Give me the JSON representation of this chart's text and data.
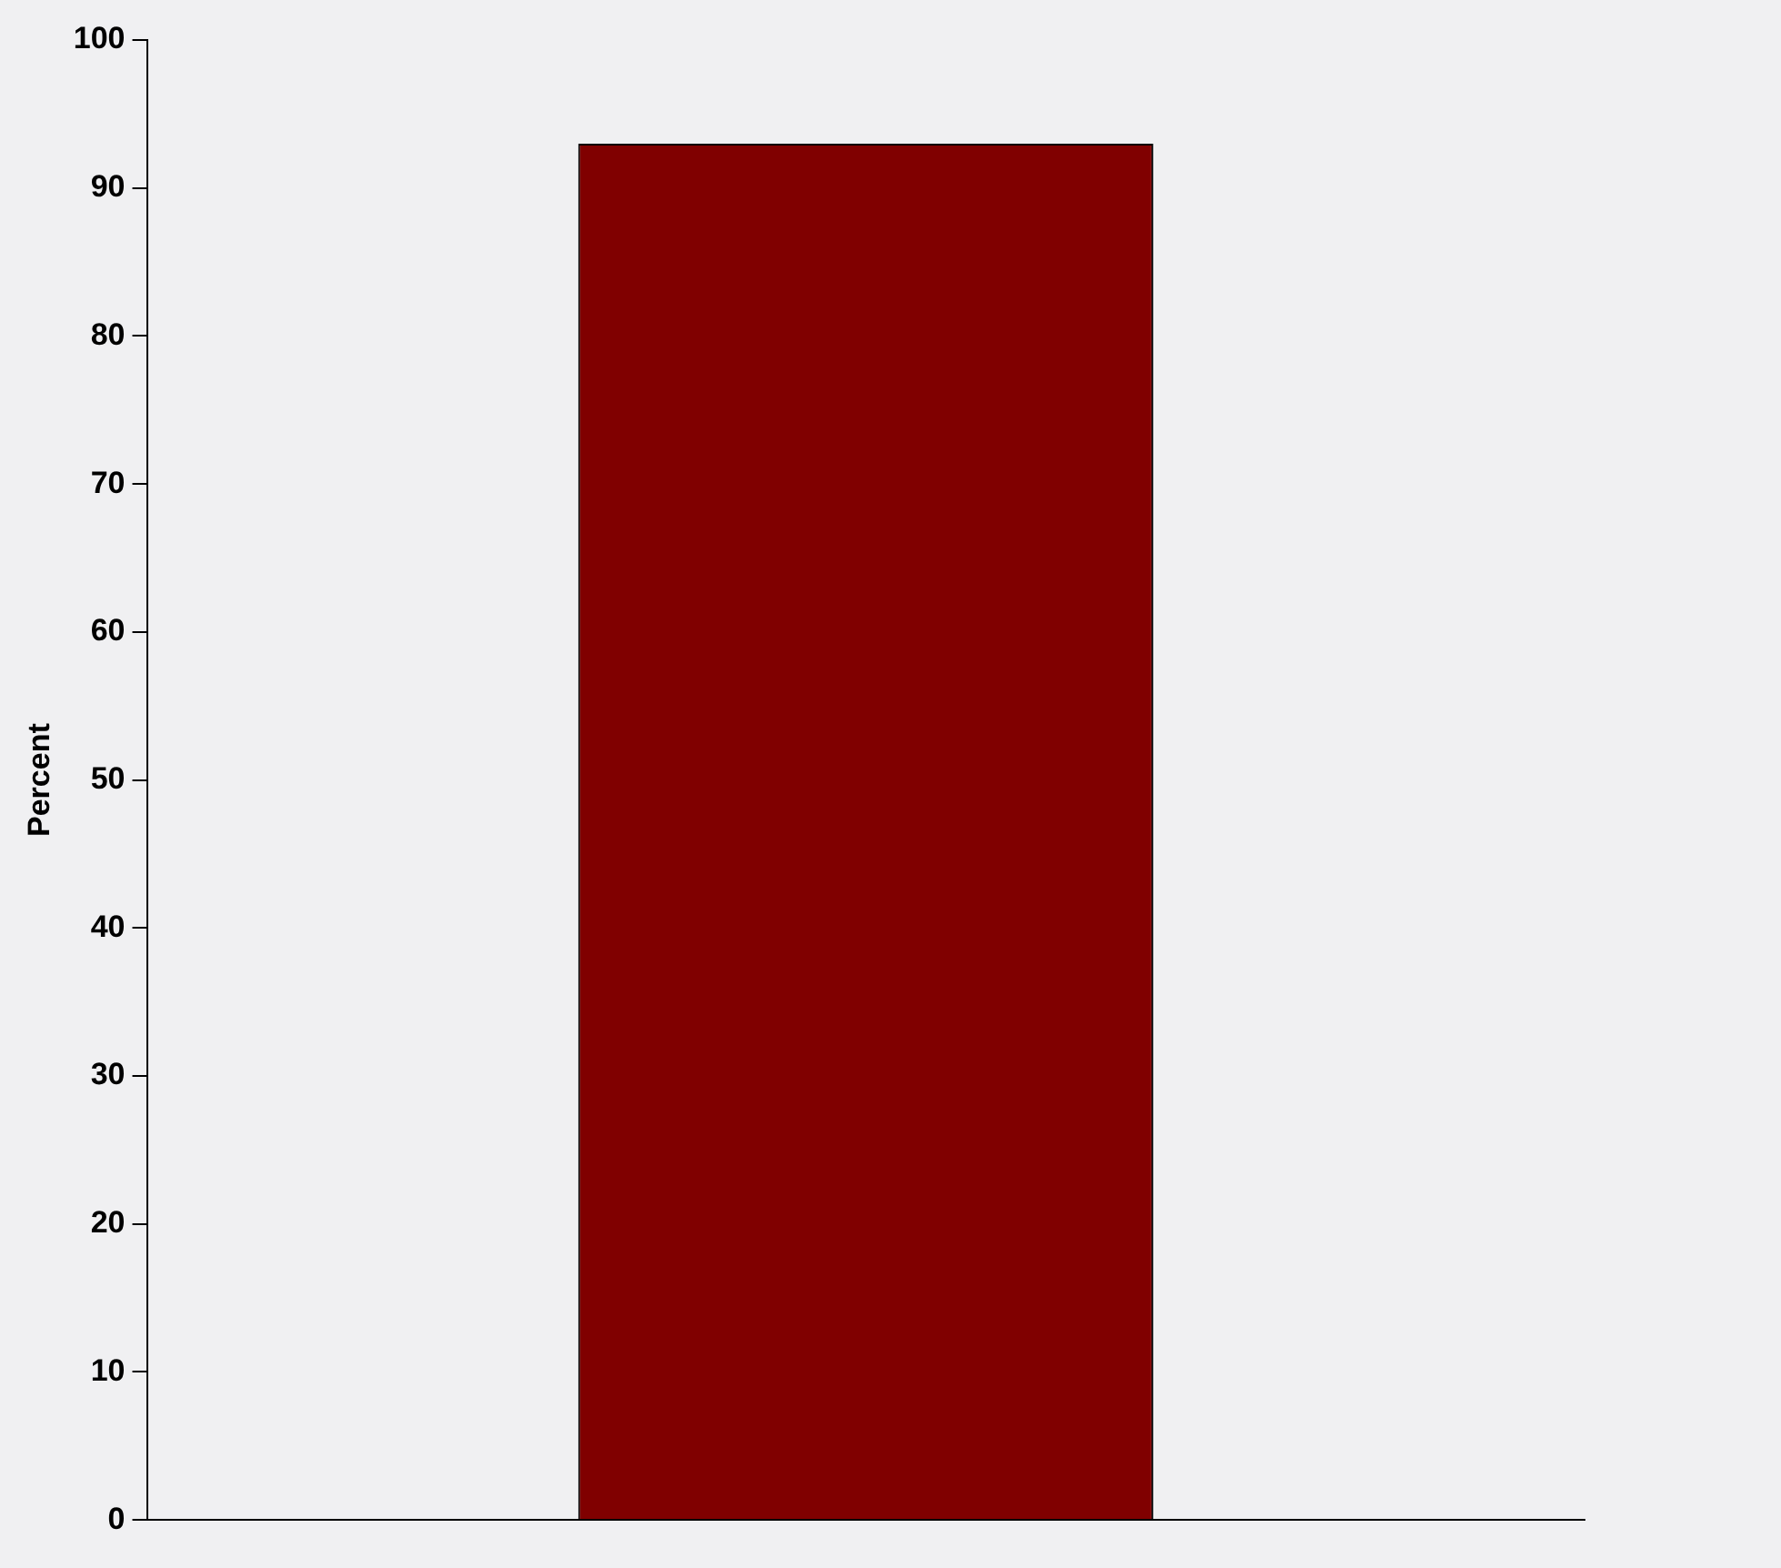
{
  "chart_data": {
    "type": "bar",
    "ylabel": "Percent",
    "categories": [
      null
    ],
    "values": [
      93
    ],
    "color": "#800000",
    "ylim": [
      0,
      100
    ],
    "yticks": [
      0,
      10,
      20,
      30,
      40,
      50,
      60,
      70,
      80,
      90,
      100
    ],
    "grid": false,
    "legend": false
  }
}
